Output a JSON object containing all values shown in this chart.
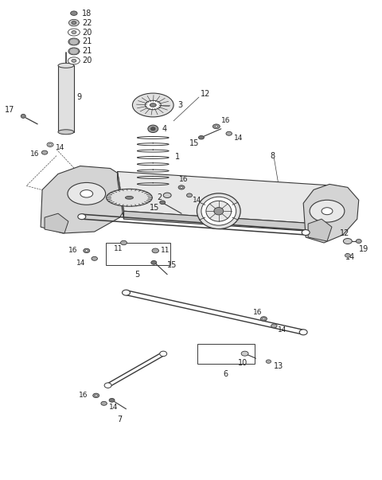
{
  "bg_color": "#ffffff",
  "line_color": "#3a3a3a",
  "fig_width": 4.8,
  "fig_height": 6.03,
  "dpi": 100,
  "xlim": [
    0,
    4.8
  ],
  "ylim": [
    0,
    6.03
  ]
}
